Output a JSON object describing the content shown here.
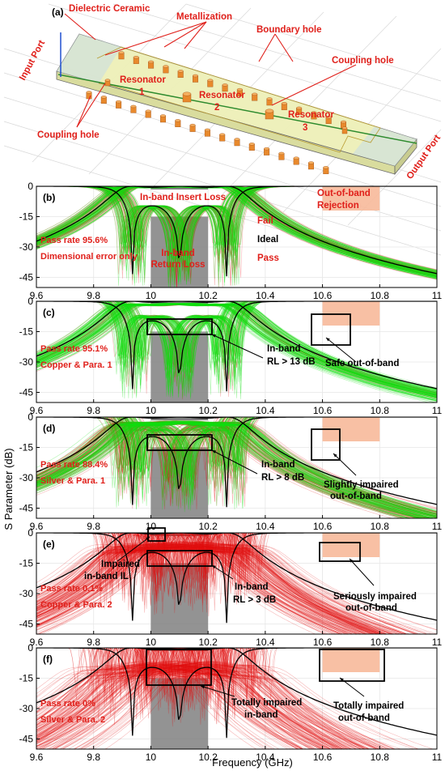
{
  "panel_a": {
    "label": "(a)",
    "annotations": {
      "dielectric": "Dielectric Ceramic",
      "metallization": "Metallization",
      "boundary_hole": "Boundary hole",
      "input_port": "Input Port",
      "coupling_hole_right": "Coupling hole",
      "coupling_hole_left": "Coupling hole",
      "output_port": "Output Port",
      "resonator_1": "Resonator",
      "resonator_1_num": "1",
      "resonator_2": "Resonator",
      "resonator_2_num": "2",
      "resonator_3": "Resonator",
      "resonator_3_num": "3"
    }
  },
  "axes_common": {
    "ylabel": "S Parameter (dB)",
    "xlabel": "Frequency (GHz)",
    "xlim": [
      9.6,
      11.0
    ],
    "ylim": [
      -50,
      0
    ],
    "xticks": [
      "9.6",
      "9.8",
      "10",
      "10.2",
      "10.4",
      "10.6",
      "10.8",
      "11"
    ],
    "yticks": [
      "0",
      "-15",
      "-30",
      "-45"
    ],
    "colors": {
      "fail": "#e01010",
      "pass": "#10e010",
      "ideal": "#000000",
      "passband": "#808080",
      "rejection": "#f7b99a",
      "label": "#e0201b"
    }
  },
  "chart_data": [
    {
      "type": "line",
      "panel": "(b)",
      "series": [
        {
          "name": "Fail"
        },
        {
          "name": "Ideal"
        },
        {
          "name": "Pass"
        }
      ],
      "passband_x": [
        10.0,
        10.2
      ],
      "rejection_x": [
        10.6,
        10.8
      ],
      "annotations": {
        "insert_loss": "In-band Insert Loss",
        "oob_line1": "Out-of-band",
        "oob_line2": "Rejection",
        "fail": "Fail",
        "ideal": "Ideal",
        "pass": "Pass",
        "rl_line1": "In-band",
        "rl_line2": "Return Loss",
        "pass_rate": "Pass rate 95.6%",
        "condition": "Dimensional error only"
      },
      "pass_rate_percent": 95.6
    },
    {
      "type": "line",
      "panel": "(c)",
      "passband_x": [
        10.0,
        10.2
      ],
      "rejection_x": [
        10.6,
        10.8
      ],
      "annotations": {
        "rl_line1": "In-band",
        "rl_line2": "RL > 13 dB",
        "oob": "Safe out-of-band",
        "pass_rate": "Pass rate 95.1%",
        "condition": "Copper & Para. 1"
      },
      "pass_rate_percent": 95.1
    },
    {
      "type": "line",
      "panel": "(d)",
      "passband_x": [
        10.0,
        10.2
      ],
      "rejection_x": [
        10.6,
        10.8
      ],
      "annotations": {
        "rl_line1": "In-band",
        "rl_line2": "RL > 8 dB",
        "oob_line1": "Slightly impaired",
        "oob_line2": "out-of-band",
        "pass_rate": "Pass rate 88.4%",
        "condition": "Silver & Para. 1"
      },
      "pass_rate_percent": 88.4
    },
    {
      "type": "line",
      "panel": "(e)",
      "passband_x": [
        10.0,
        10.2
      ],
      "rejection_x": [
        10.6,
        10.8
      ],
      "annotations": {
        "il_line1": "Impaired",
        "il_line2": "in-band IL",
        "rl_line1": "In-band",
        "rl_line2": "RL > 3 dB",
        "oob_line1": "Seriously impaired",
        "oob_line2": "out-of-band",
        "pass_rate": "Pass rate 0.1%",
        "condition": "Copper & Para. 2"
      },
      "pass_rate_percent": 0.1
    },
    {
      "type": "line",
      "panel": "(f)",
      "passband_x": [
        10.0,
        10.2
      ],
      "rejection_x": [
        10.6,
        10.8
      ],
      "annotations": {
        "ib_line1": "Totally impaired",
        "ib_line2": "in-band",
        "oob_line1": "Totally impaired",
        "oob_line2": "out-of-band",
        "pass_rate": "Pass rate 0%",
        "condition": "Silver & Para. 2"
      },
      "pass_rate_percent": 0
    }
  ]
}
